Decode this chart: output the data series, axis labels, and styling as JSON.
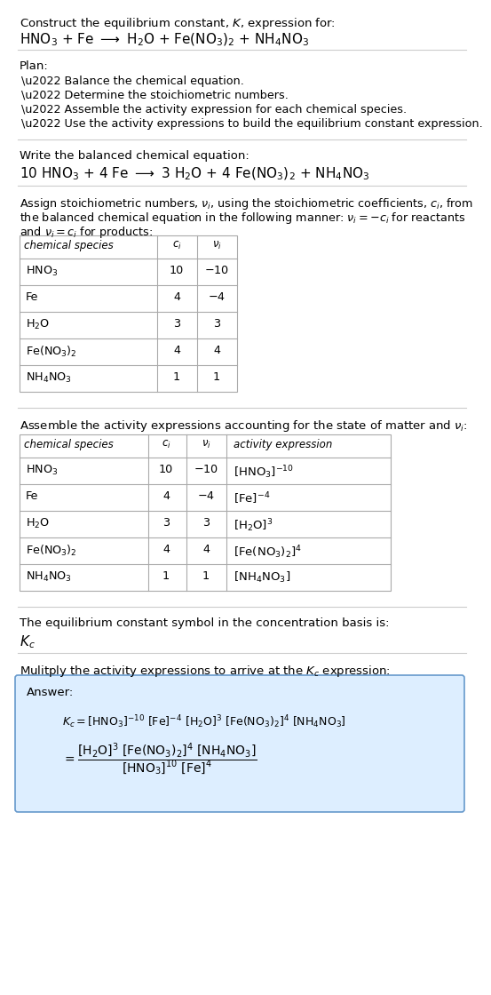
{
  "title_line1": "Construct the equilibrium constant, $K$, expression for:",
  "title_line2": "$\\mathrm{HNO_3}$ + Fe $\\longrightarrow$ $\\mathrm{H_2O}$ + $\\mathrm{Fe(NO_3)_2}$ + $\\mathrm{NH_4NO_3}$",
  "plan_header": "Plan:",
  "plan_items": [
    "\\u2022 Balance the chemical equation.",
    "\\u2022 Determine the stoichiometric numbers.",
    "\\u2022 Assemble the activity expression for each chemical species.",
    "\\u2022 Use the activity expressions to build the equilibrium constant expression."
  ],
  "balanced_header": "Write the balanced chemical equation:",
  "balanced_eq": "$10\\ \\mathrm{HNO_3}$ + $4\\ \\mathrm{Fe}$ $\\longrightarrow$ $3\\ \\mathrm{H_2O}$ + $4\\ \\mathrm{Fe(NO_3)_2}$ + $\\mathrm{NH_4NO_3}$",
  "stoich_text1": "Assign stoichiometric numbers, $\\nu_i$, using the stoichiometric coefficients, $c_i$, from",
  "stoich_text2": "the balanced chemical equation in the following manner: $\\nu_i = -c_i$ for reactants",
  "stoich_text3": "and $\\nu_i = c_i$ for products:",
  "table1_col_headers": [
    "chemical species",
    "$c_i$",
    "$\\nu_i$"
  ],
  "table1_rows": [
    [
      "$\\mathrm{HNO_3}$",
      "10",
      "$-10$"
    ],
    [
      "Fe",
      "4",
      "$-4$"
    ],
    [
      "$\\mathrm{H_2O}$",
      "3",
      "3"
    ],
    [
      "$\\mathrm{Fe(NO_3)_2}$",
      "4",
      "4"
    ],
    [
      "$\\mathrm{NH_4NO_3}$",
      "1",
      "1"
    ]
  ],
  "activity_header": "Assemble the activity expressions accounting for the state of matter and $\\nu_i$:",
  "table2_col_headers": [
    "chemical species",
    "$c_i$",
    "$\\nu_i$",
    "activity expression"
  ],
  "table2_rows": [
    [
      "$\\mathrm{HNO_3}$",
      "10",
      "$-10$",
      "$[\\mathrm{HNO_3}]^{-10}$"
    ],
    [
      "Fe",
      "4",
      "$-4$",
      "$[\\mathrm{Fe}]^{-4}$"
    ],
    [
      "$\\mathrm{H_2O}$",
      "3",
      "3",
      "$[\\mathrm{H_2O}]^{3}$"
    ],
    [
      "$\\mathrm{Fe(NO_3)_2}$",
      "4",
      "4",
      "$[\\mathrm{Fe(NO_3)_2}]^{4}$"
    ],
    [
      "$\\mathrm{NH_4NO_3}$",
      "1",
      "1",
      "$[\\mathrm{NH_4NO_3}]$"
    ]
  ],
  "kc_header": "The equilibrium constant symbol in the concentration basis is:",
  "kc_symbol": "$K_c$",
  "multiply_header": "Mulitply the activity expressions to arrive at the $K_c$ expression:",
  "answer_label": "Answer:",
  "answer_line1": "$K_c = [\\mathrm{HNO_3}]^{-10}\\ [\\mathrm{Fe}]^{-4}\\ [\\mathrm{H_2O}]^{3}\\ [\\mathrm{Fe(NO_3)_2}]^{4}\\ [\\mathrm{NH_4NO_3}]$",
  "answer_eq_num": "$= \\dfrac{[\\mathrm{H_2O}]^{3}\\ [\\mathrm{Fe(NO_3)_2}]^{4}\\ [\\mathrm{NH_4NO_3}]}{[\\mathrm{HNO_3}]^{10}\\ [\\mathrm{Fe}]^{4}}$",
  "bg_color": "#ffffff",
  "answer_box_fill": "#ddeeff",
  "answer_box_edge": "#6699cc",
  "table_edge": "#aaaaaa",
  "rule_color": "#cccccc"
}
